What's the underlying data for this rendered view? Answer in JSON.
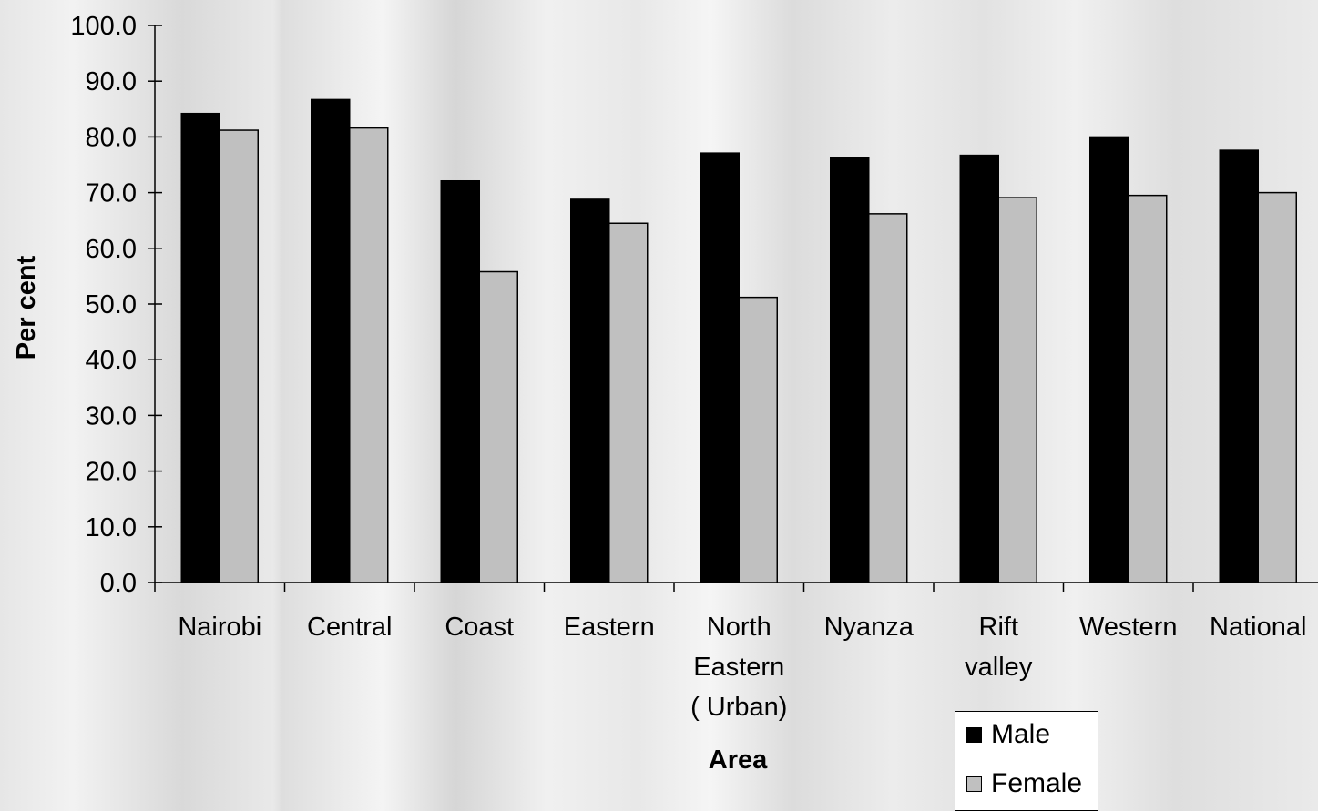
{
  "chart_data": {
    "type": "bar",
    "title": "",
    "xlabel": "Area",
    "ylabel": "Per cent",
    "ylim": [
      0,
      100
    ],
    "yticks": [
      "0.0",
      "10.0",
      "20.0",
      "30.0",
      "40.0",
      "50.0",
      "60.0",
      "70.0",
      "80.0",
      "90.0",
      "100.0"
    ],
    "categories": [
      [
        "Nairobi"
      ],
      [
        "Central"
      ],
      [
        "Coast"
      ],
      [
        "Eastern"
      ],
      [
        "North",
        "Eastern",
        "( Urban)"
      ],
      [
        "Nyanza"
      ],
      [
        "Rift",
        "valley"
      ],
      [
        "Western"
      ],
      [
        "National"
      ]
    ],
    "series": [
      {
        "name": "Male",
        "color": "#000000",
        "values": [
          84.2,
          86.7,
          72.1,
          68.8,
          77.1,
          76.3,
          76.7,
          80.0,
          77.6
        ]
      },
      {
        "name": "Female",
        "color": "#c0c0c0",
        "values": [
          81.2,
          81.6,
          55.8,
          64.5,
          51.2,
          66.2,
          69.1,
          69.5,
          70.0
        ]
      }
    ],
    "grid": false,
    "legend_position": "bottom-right"
  }
}
